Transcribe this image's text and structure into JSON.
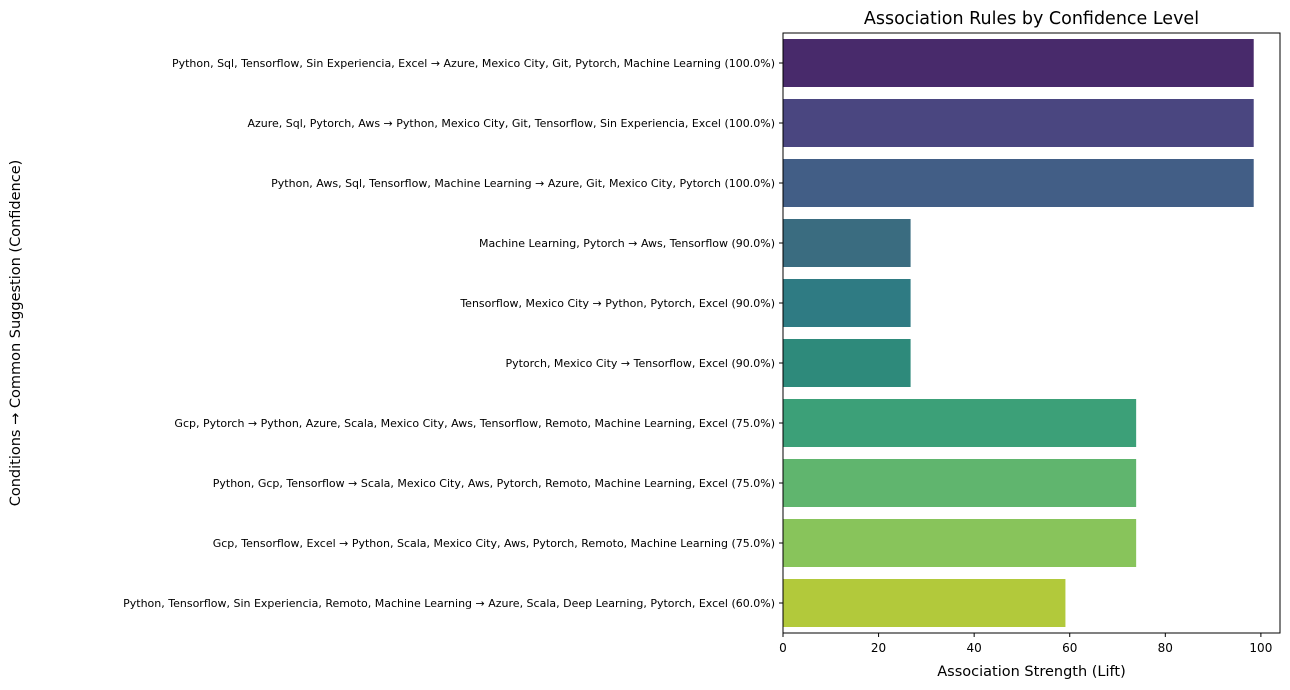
{
  "chart_data": {
    "type": "bar",
    "orientation": "horizontal",
    "title": "Association Rules by Confidence Level",
    "xlabel": "Association Strength (Lift)",
    "ylabel": "Conditions → Common Suggestion (Confidence)",
    "xlim": [
      0,
      104
    ],
    "xticks": [
      0,
      20,
      40,
      60,
      80,
      100
    ],
    "grid": false,
    "categories": [
      "Python, Sql, Tensorflow, Sin Experiencia, Excel → Azure, Mexico City, Git, Pytorch, Machine Learning (100.0%)",
      "Azure, Sql, Pytorch, Aws → Python, Mexico City, Git, Tensorflow, Sin Experiencia, Excel (100.0%)",
      "Python, Aws, Sql, Tensorflow, Machine Learning → Azure, Git, Mexico City, Pytorch (100.0%)",
      "Machine Learning, Pytorch → Aws, Tensorflow (90.0%)",
      "Tensorflow, Mexico City → Python, Pytorch, Excel (90.0%)",
      "Pytorch, Mexico City → Tensorflow, Excel (90.0%)",
      "Gcp, Pytorch → Python, Azure, Scala, Mexico City, Aws, Tensorflow, Remoto, Machine Learning, Excel (75.0%)",
      "Python, Gcp, Tensorflow → Scala, Mexico City, Aws, Pytorch, Remoto, Machine Learning, Excel (75.0%)",
      "Gcp, Tensorflow, Excel → Python, Scala, Mexico City, Aws, Pytorch, Remoto, Machine Learning (75.0%)",
      "Python, Tensorflow, Sin Experiencia, Remoto, Machine Learning → Azure, Scala, Deep Learning, Pytorch, Excel (60.0%)"
    ],
    "values": [
      98.5,
      98.5,
      98.5,
      26.7,
      26.7,
      26.7,
      73.9,
      73.9,
      73.9,
      59.1
    ],
    "colors": [
      "#482a6b",
      "#4a4680",
      "#425e86",
      "#3a6c80",
      "#2f7b83",
      "#2e8a7b",
      "#3ca078",
      "#60b56e",
      "#88c45b",
      "#b2c93b"
    ]
  }
}
